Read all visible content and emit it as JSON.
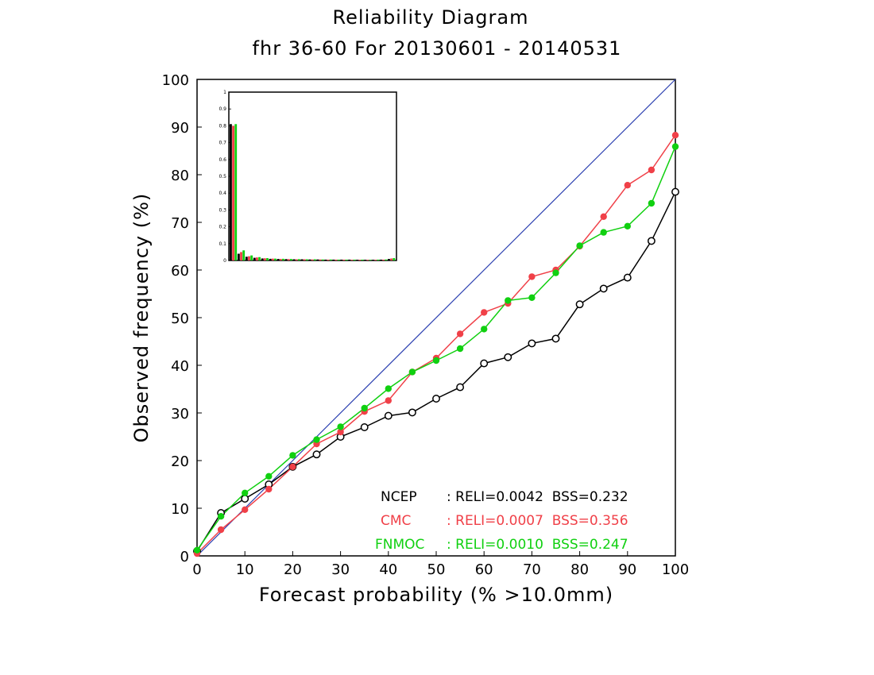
{
  "chart_data": {
    "type": "line",
    "title": "Reliability Diagram",
    "subtitle": "fhr 36-60 For 20130601 - 20140531",
    "xlabel": "Forecast probability (% >10.0mm)",
    "ylabel": "Observed frequency (%)",
    "xlim": [
      0,
      100
    ],
    "ylim": [
      0,
      100
    ],
    "xticks": [
      "0",
      "10",
      "20",
      "30",
      "40",
      "50",
      "60",
      "70",
      "80",
      "90",
      "100"
    ],
    "yticks": [
      "0",
      "10",
      "20",
      "30",
      "40",
      "50",
      "60",
      "70",
      "80",
      "90",
      "100"
    ],
    "grid": false,
    "diagonal": {
      "x": [
        0,
        100
      ],
      "y": [
        0,
        100
      ],
      "color": "#2b3fb0"
    },
    "x": [
      0,
      5,
      10,
      15,
      20,
      25,
      30,
      35,
      40,
      45,
      50,
      55,
      60,
      65,
      70,
      75,
      80,
      85,
      90,
      95,
      100
    ],
    "series": [
      {
        "name": "NCEP",
        "color": "#000000",
        "marker": "open-circle",
        "values": [
          1,
          9,
          12,
          15,
          18.7,
          21.3,
          25,
          27,
          29.4,
          30.1,
          33,
          35.4,
          40.4,
          41.7,
          44.6,
          45.6,
          52.8,
          56.1,
          58.4,
          66.1,
          76.4
        ]
      },
      {
        "name": "CMC",
        "color": "#f04048",
        "marker": "filled-circle",
        "values": [
          0.5,
          5.5,
          9.7,
          14,
          18.7,
          23.5,
          26,
          30.3,
          32.6,
          38.6,
          41.5,
          46.6,
          51.1,
          53,
          58.6,
          60,
          65,
          71.2,
          77.8,
          81,
          88.3
        ]
      },
      {
        "name": "FNMOC",
        "color": "#10d010",
        "marker": "filled-circle",
        "values": [
          1.2,
          8.3,
          13.2,
          16.7,
          21.1,
          24.4,
          27.1,
          31,
          35.1,
          38.6,
          41,
          43.5,
          47.6,
          53.6,
          54.2,
          59.4,
          65.1,
          67.9,
          69.2,
          74,
          85.9
        ]
      }
    ],
    "legend": {
      "placement": "bottom-right",
      "entries": [
        {
          "name": "NCEP",
          "text": ": RELI=0.0042  BSS=0.232",
          "color": "#000000"
        },
        {
          "name": "CMC",
          "text": ": RELI=0.0007  BSS=0.356",
          "color": "#f04048"
        },
        {
          "name": "FNMOC",
          "text": ": RELI=0.0010  BSS=0.247",
          "color": "#10d010"
        }
      ]
    },
    "inset": {
      "type": "bar",
      "placement": "top-left",
      "ylim": [
        0,
        1
      ],
      "yticks": [
        "0",
        "0.1",
        "0.2",
        "0.3",
        "0.4",
        "0.5",
        "0.6",
        "0.7",
        "0.8",
        "0.9",
        "1"
      ],
      "series": [
        {
          "name": "NCEP",
          "color": "#000000",
          "values": [
            0.81,
            0.04,
            0.022,
            0.016,
            0.012,
            0.01,
            0.009,
            0.008,
            0.007,
            0.007,
            0.006,
            0.006,
            0.005,
            0.005,
            0.005,
            0.005,
            0.004,
            0.004,
            0.004,
            0.005,
            0.009
          ]
        },
        {
          "name": "CMC",
          "color": "#f04048",
          "values": [
            0.8,
            0.05,
            0.025,
            0.018,
            0.013,
            0.011,
            0.009,
            0.008,
            0.007,
            0.007,
            0.006,
            0.006,
            0.005,
            0.005,
            0.005,
            0.004,
            0.004,
            0.004,
            0.004,
            0.005,
            0.012
          ]
        },
        {
          "name": "FNMOC",
          "color": "#10d010",
          "values": [
            0.81,
            0.06,
            0.03,
            0.02,
            0.014,
            0.011,
            0.01,
            0.009,
            0.008,
            0.007,
            0.007,
            0.006,
            0.006,
            0.005,
            0.005,
            0.005,
            0.005,
            0.004,
            0.005,
            0.006,
            0.014
          ]
        }
      ]
    }
  }
}
